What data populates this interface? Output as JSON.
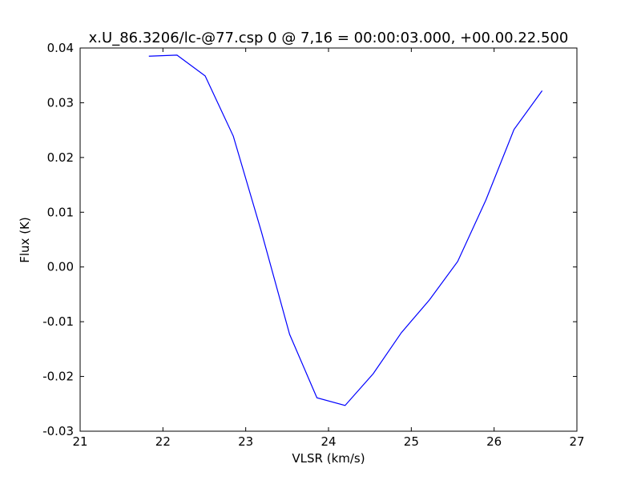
{
  "chart_data": {
    "type": "line",
    "title": "x.U_86.3206/lc-@77.csp 0 @ 7,16 = 00:00:03.000, +00.00.22.500",
    "x_label": "VLSR (km/s)",
    "y_label": "Flux (K)",
    "series": [
      {
        "color": "#0000ff",
        "x": [
          21.83,
          22.17,
          22.51,
          22.85,
          23.19,
          23.53,
          23.86,
          24.2,
          24.54,
          24.88,
          25.22,
          25.56,
          25.9,
          26.24,
          26.58
        ],
        "values": [
          0.0385,
          0.0387,
          0.0349,
          0.0239,
          0.0064,
          -0.0123,
          -0.0239,
          -0.0253,
          -0.0195,
          -0.012,
          -0.006,
          0.001,
          0.0122,
          0.0251,
          0.0322
        ]
      }
    ],
    "xlim": [
      21,
      27
    ],
    "xticks": [
      21,
      22,
      23,
      24,
      25,
      26,
      27
    ],
    "ylim": [
      -0.03,
      0.04
    ],
    "yticks": [
      -0.03,
      -0.02,
      -0.01,
      {
        "value": 0,
        "label": "0.00"
      },
      0.01,
      0.02,
      0.03,
      0.04
    ]
  }
}
